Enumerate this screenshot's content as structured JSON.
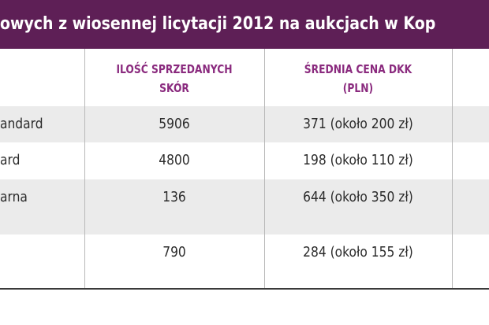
{
  "title": "owych z wiosennej licytacji 2012 na aukcjach w Kop",
  "headers": {
    "quantity": [
      "ILOŚĆ SPRZEDANYCH",
      "SKÓR"
    ],
    "price": [
      "ŚREDNIA CENA DKK",
      "(PLN)"
    ]
  },
  "rows": [
    {
      "name": "andard",
      "quantity": "5906",
      "price": "371 (około 200 zł)"
    },
    {
      "name": "ard",
      "quantity": "4800",
      "price": "198 (około 110 zł)"
    },
    {
      "name": "arna",
      "quantity": "136",
      "price": "644 (około 350 zł)"
    },
    {
      "name": "",
      "quantity": "790",
      "price": "284 (około 155 zł)"
    }
  ]
}
